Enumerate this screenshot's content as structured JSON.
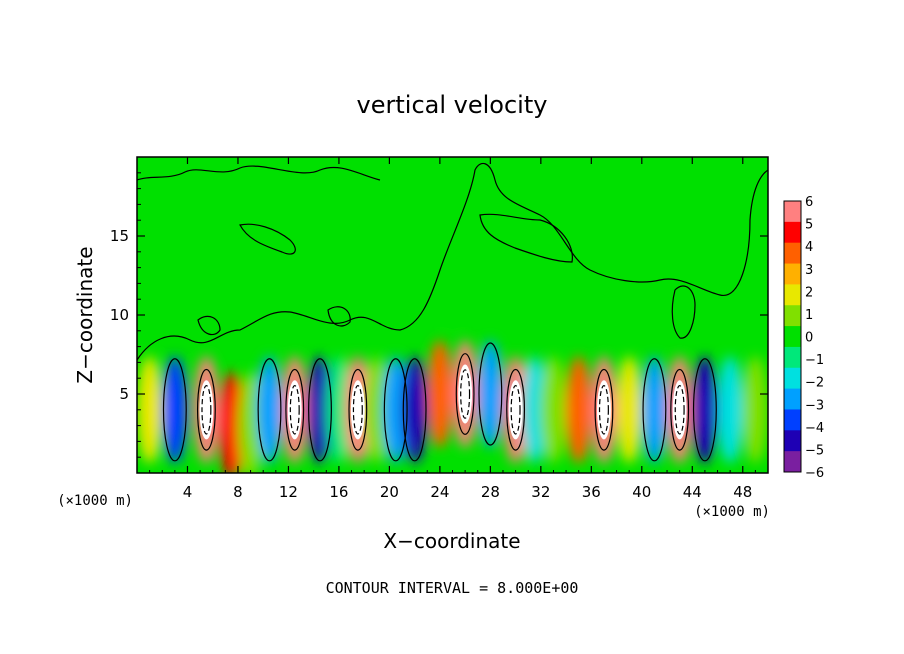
{
  "chart_data": {
    "type": "heatmap",
    "title": "vertical velocity",
    "xlabel": "X−coordinate",
    "ylabel": "Z−coordinate",
    "x_unit": "(×1000 m)",
    "xlim": [
      0,
      50
    ],
    "ylim": [
      0,
      20
    ],
    "x_ticks": [
      4,
      8,
      12,
      16,
      20,
      24,
      28,
      32,
      36,
      40,
      44,
      48
    ],
    "y_ticks": [
      5,
      10,
      15
    ],
    "colorbar": {
      "ticks": [
        "6",
        "5",
        "4",
        "3",
        "2",
        "1",
        "0",
        "−1",
        "−2",
        "−3",
        "−4",
        "−5",
        "−6"
      ],
      "min": -6,
      "max": 6,
      "colors": [
        "#7a1fa0",
        "#1e00b4",
        "#0040ff",
        "#00a0ff",
        "#00e0e0",
        "#00e87a",
        "#00e000",
        "#80e000",
        "#e8e800",
        "#ffb000",
        "#ff6000",
        "#ff0000",
        "#ff8080"
      ]
    },
    "annotation": "CONTOUR INTERVAL = 8.000E+00",
    "cells": [
      {
        "x": 1,
        "z": 4,
        "w": 1.5
      },
      {
        "x": 3,
        "z": 4,
        "w": -4
      },
      {
        "x": 5.5,
        "z": 4,
        "w": 6
      },
      {
        "x": 7.5,
        "z": 3,
        "w": 5
      },
      {
        "x": 9,
        "z": 3,
        "w": 1
      },
      {
        "x": 10.5,
        "z": 4,
        "w": -3
      },
      {
        "x": 12.5,
        "z": 4,
        "w": 6
      },
      {
        "x": 14.5,
        "z": 4,
        "w": -5
      },
      {
        "x": 16,
        "z": 4,
        "w": -1
      },
      {
        "x": 17.5,
        "z": 4,
        "w": 6
      },
      {
        "x": 19,
        "z": 4,
        "w": 1
      },
      {
        "x": 20.5,
        "z": 4,
        "w": -3
      },
      {
        "x": 22,
        "z": 4,
        "w": -5
      },
      {
        "x": 24,
        "z": 5,
        "w": 4
      },
      {
        "x": 26,
        "z": 5,
        "w": 6
      },
      {
        "x": 28,
        "z": 5,
        "w": -3
      },
      {
        "x": 30,
        "z": 4,
        "w": 6
      },
      {
        "x": 31.5,
        "z": 4,
        "w": -2
      },
      {
        "x": 33,
        "z": 4,
        "w": 1
      },
      {
        "x": 35,
        "z": 4,
        "w": 4
      },
      {
        "x": 37,
        "z": 4,
        "w": 6
      },
      {
        "x": 39,
        "z": 4,
        "w": 2
      },
      {
        "x": 41,
        "z": 4,
        "w": -3
      },
      {
        "x": 43,
        "z": 4,
        "w": 6
      },
      {
        "x": 45,
        "z": 4,
        "w": -5
      },
      {
        "x": 47,
        "z": 4,
        "w": -2
      },
      {
        "x": 49,
        "z": 4,
        "w": 1
      },
      {
        "x": 25,
        "z": 12,
        "w": 0
      },
      {
        "x": 10,
        "z": 15,
        "w": 0
      }
    ]
  }
}
